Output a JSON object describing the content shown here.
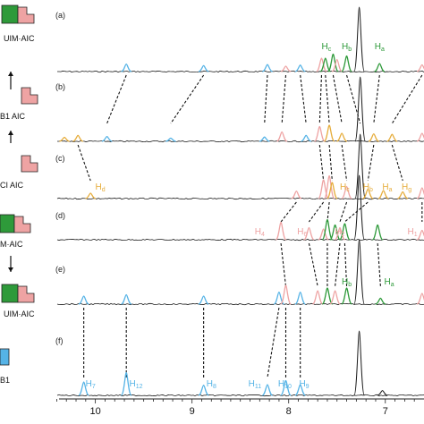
{
  "chart_data": {
    "type": "line",
    "xlabel": "",
    "ylabel": "",
    "xlim": [
      10.45,
      6.6
    ],
    "xticks": [
      10,
      9,
      8,
      7
    ],
    "tick_labels": [
      "10",
      "9",
      "8",
      "7"
    ],
    "colors": {
      "baseline": "#1a1a1a",
      "green": "#2e9a3a",
      "pink": "#eea3a3",
      "orange": "#e6ad3c",
      "blue": "#55b3e6",
      "dashed": "#111111"
    },
    "side_labels": [
      "UIM·AIC",
      "B1 AIC",
      "CI  AIC",
      "M·AIC",
      "UIM·AIC",
      "B1"
    ],
    "panels": [
      {
        "letter": "(a)",
        "peaks": [
          {
            "ppm": 9.68,
            "h": 0.28,
            "color": "blue"
          },
          {
            "ppm": 8.88,
            "h": 0.22,
            "color": "blue"
          },
          {
            "ppm": 8.22,
            "h": 0.26,
            "color": "blue"
          },
          {
            "ppm": 8.03,
            "h": 0.2,
            "color": "pink"
          },
          {
            "ppm": 7.88,
            "h": 0.24,
            "color": "blue"
          },
          {
            "ppm": 7.66,
            "h": 0.5,
            "color": "pink"
          },
          {
            "ppm": 7.62,
            "h": 0.5,
            "color": "green"
          },
          {
            "ppm": 7.54,
            "h": 0.65,
            "color": "green"
          },
          {
            "ppm": 7.5,
            "h": 0.45,
            "color": "pink"
          },
          {
            "ppm": 7.4,
            "h": 0.58,
            "color": "green"
          },
          {
            "ppm": 7.27,
            "h": 2.4,
            "color": "baseline"
          },
          {
            "ppm": 7.06,
            "h": 0.3,
            "color": "green"
          },
          {
            "ppm": 6.62,
            "h": 0.25,
            "color": "pink"
          }
        ],
        "labels": [
          {
            "text": "H",
            "sub": "c",
            "ppm": 7.61,
            "color": "green"
          },
          {
            "text": "H",
            "sub": "b",
            "ppm": 7.4,
            "color": "green"
          },
          {
            "text": "H",
            "sub": "a",
            "ppm": 7.06,
            "color": "green"
          }
        ]
      },
      {
        "letter": "(b)",
        "peaks": [
          {
            "ppm": 10.32,
            "h": 0.15,
            "color": "orange"
          },
          {
            "ppm": 10.18,
            "h": 0.22,
            "color": "orange"
          },
          {
            "ppm": 9.88,
            "h": 0.18,
            "color": "blue"
          },
          {
            "ppm": 9.22,
            "h": 0.12,
            "color": "blue"
          },
          {
            "ppm": 8.25,
            "h": 0.16,
            "color": "blue"
          },
          {
            "ppm": 8.07,
            "h": 0.35,
            "color": "pink"
          },
          {
            "ppm": 7.82,
            "h": 0.22,
            "color": "blue"
          },
          {
            "ppm": 7.68,
            "h": 0.55,
            "color": "pink"
          },
          {
            "ppm": 7.58,
            "h": 0.6,
            "color": "orange"
          },
          {
            "ppm": 7.45,
            "h": 0.3,
            "color": "orange"
          },
          {
            "ppm": 7.26,
            "h": 2.4,
            "color": "baseline"
          },
          {
            "ppm": 7.12,
            "h": 0.28,
            "color": "orange"
          },
          {
            "ppm": 6.93,
            "h": 0.26,
            "color": "orange"
          },
          {
            "ppm": 6.62,
            "h": 0.3,
            "color": "pink"
          }
        ],
        "labels": []
      },
      {
        "letter": "(c)",
        "peaks": [
          {
            "ppm": 10.05,
            "h": 0.2,
            "color": "orange"
          },
          {
            "ppm": 7.92,
            "h": 0.28,
            "color": "pink"
          },
          {
            "ppm": 7.64,
            "h": 0.7,
            "color": "pink"
          },
          {
            "ppm": 7.58,
            "h": 0.85,
            "color": "pink"
          },
          {
            "ppm": 7.55,
            "h": 0.6,
            "color": "orange"
          },
          {
            "ppm": 7.4,
            "h": 0.45,
            "color": "pink"
          },
          {
            "ppm": 7.26,
            "h": 2.4,
            "color": "baseline"
          },
          {
            "ppm": 7.18,
            "h": 0.35,
            "color": "orange"
          },
          {
            "ppm": 7.02,
            "h": 0.3,
            "color": "orange"
          },
          {
            "ppm": 6.82,
            "h": 0.25,
            "color": "orange"
          },
          {
            "ppm": 6.62,
            "h": 0.4,
            "color": "pink"
          }
        ],
        "labels": [
          {
            "text": "H",
            "sub": "d",
            "ppm": 9.95,
            "color": "orange"
          },
          {
            "text": "H",
            "sub": "c",
            "ppm": 7.42,
            "color": "orange"
          },
          {
            "text": "H",
            "sub": "b",
            "ppm": 7.18,
            "color": "orange"
          },
          {
            "text": "H",
            "sub": "a",
            "ppm": 6.98,
            "color": "orange"
          },
          {
            "text": "H",
            "sub": "g",
            "ppm": 6.78,
            "color": "orange"
          }
        ]
      },
      {
        "letter": "(d)",
        "peaks": [
          {
            "ppm": 8.08,
            "h": 0.65,
            "color": "pink"
          },
          {
            "ppm": 7.79,
            "h": 0.45,
            "color": "pink"
          },
          {
            "ppm": 7.64,
            "h": 0.4,
            "color": "pink"
          },
          {
            "ppm": 7.6,
            "h": 0.75,
            "color": "green"
          },
          {
            "ppm": 7.52,
            "h": 0.55,
            "color": "green"
          },
          {
            "ppm": 7.47,
            "h": 0.45,
            "color": "pink"
          },
          {
            "ppm": 7.42,
            "h": 0.6,
            "color": "green"
          },
          {
            "ppm": 7.27,
            "h": 2.4,
            "color": "baseline"
          },
          {
            "ppm": 7.08,
            "h": 0.55,
            "color": "green"
          },
          {
            "ppm": 6.62,
            "h": 0.35,
            "color": "pink"
          }
        ],
        "labels": [
          {
            "text": "H",
            "sub": "4",
            "ppm": 8.3,
            "color": "pink"
          },
          {
            "text": "H",
            "sub": "6",
            "ppm": 7.86,
            "color": "pink"
          },
          {
            "text": "H",
            "sub": "2",
            "ppm": 7.47,
            "color": "pink"
          },
          {
            "text": "H",
            "sub": "1",
            "ppm": 6.72,
            "color": "pink"
          }
        ]
      },
      {
        "letter": "(e)",
        "peaks": [
          {
            "ppm": 10.12,
            "h": 0.3,
            "color": "blue"
          },
          {
            "ppm": 9.68,
            "h": 0.35,
            "color": "blue"
          },
          {
            "ppm": 8.88,
            "h": 0.3,
            "color": "blue"
          },
          {
            "ppm": 8.1,
            "h": 0.45,
            "color": "blue"
          },
          {
            "ppm": 8.03,
            "h": 0.7,
            "color": "pink"
          },
          {
            "ppm": 7.88,
            "h": 0.45,
            "color": "blue"
          },
          {
            "ppm": 7.7,
            "h": 0.5,
            "color": "pink"
          },
          {
            "ppm": 7.6,
            "h": 0.6,
            "color": "green"
          },
          {
            "ppm": 7.52,
            "h": 0.5,
            "color": "pink"
          },
          {
            "ppm": 7.4,
            "h": 0.6,
            "color": "green"
          },
          {
            "ppm": 7.27,
            "h": 2.4,
            "color": "baseline"
          },
          {
            "ppm": 7.05,
            "h": 0.22,
            "color": "green"
          },
          {
            "ppm": 6.62,
            "h": 0.4,
            "color": "pink"
          }
        ],
        "labels": [
          {
            "text": "H",
            "sub": "b",
            "ppm": 7.4,
            "color": "green"
          },
          {
            "text": "H",
            "sub": "a",
            "ppm": 6.96,
            "color": "green"
          }
        ]
      },
      {
        "letter": "(f)",
        "peaks": [
          {
            "ppm": 10.12,
            "h": 0.5,
            "color": "blue"
          },
          {
            "ppm": 9.68,
            "h": 0.85,
            "color": "blue"
          },
          {
            "ppm": 8.88,
            "h": 0.38,
            "color": "blue"
          },
          {
            "ppm": 8.22,
            "h": 0.4,
            "color": "blue"
          },
          {
            "ppm": 8.03,
            "h": 0.55,
            "color": "blue"
          },
          {
            "ppm": 7.88,
            "h": 0.4,
            "color": "blue"
          },
          {
            "ppm": 7.27,
            "h": 2.4,
            "color": "baseline"
          },
          {
            "ppm": 7.03,
            "h": 0.18,
            "color": "baseline"
          }
        ],
        "labels": [
          {
            "text": "H",
            "sub": "7",
            "ppm": 10.05,
            "color": "blue"
          },
          {
            "text": "H",
            "sub": "12",
            "ppm": 9.58,
            "color": "blue"
          },
          {
            "text": "H",
            "sub": "8",
            "ppm": 8.8,
            "color": "blue"
          },
          {
            "text": "H",
            "sub": "11",
            "ppm": 8.35,
            "color": "blue"
          },
          {
            "text": "H",
            "sub": "10",
            "ppm": 8.04,
            "color": "blue"
          },
          {
            "text": "H",
            "sub": "9",
            "ppm": 7.84,
            "color": "blue"
          }
        ]
      }
    ],
    "correlations": [
      {
        "from": 0,
        "to": 1,
        "pairs": [
          [
            9.68,
            9.88
          ],
          [
            8.88,
            9.22
          ],
          [
            8.22,
            8.25
          ],
          [
            8.03,
            8.07
          ],
          [
            7.88,
            7.82
          ],
          [
            7.66,
            7.68
          ],
          [
            7.62,
            7.58
          ],
          [
            7.54,
            7.45
          ],
          [
            7.4,
            7.26
          ],
          [
            7.06,
            7.12
          ],
          [
            6.62,
            6.93
          ]
        ]
      },
      {
        "from": 1,
        "to": 2,
        "pairs": [
          [
            10.18,
            10.05
          ],
          [
            7.68,
            7.64
          ],
          [
            7.58,
            7.55
          ],
          [
            7.45,
            7.4
          ],
          [
            7.12,
            7.18
          ],
          [
            6.93,
            6.82
          ]
        ]
      },
      {
        "from": 2,
        "to": 3,
        "pairs": [
          [
            7.92,
            8.08
          ],
          [
            7.64,
            7.79
          ],
          [
            7.58,
            7.6
          ],
          [
            7.4,
            7.47
          ],
          [
            7.18,
            7.42
          ],
          [
            6.62,
            6.62
          ]
        ]
      },
      {
        "from": 3,
        "to": 4,
        "pairs": [
          [
            8.08,
            8.03
          ],
          [
            7.79,
            7.7
          ],
          [
            7.6,
            7.6
          ],
          [
            7.47,
            7.52
          ],
          [
            7.42,
            7.4
          ],
          [
            7.08,
            7.05
          ]
        ]
      },
      {
        "from": 4,
        "to": 5,
        "pairs": [
          [
            10.12,
            10.12
          ],
          [
            9.68,
            9.68
          ],
          [
            8.88,
            8.88
          ],
          [
            8.1,
            8.22
          ],
          [
            8.03,
            8.03
          ],
          [
            7.88,
            7.88
          ]
        ]
      }
    ]
  }
}
